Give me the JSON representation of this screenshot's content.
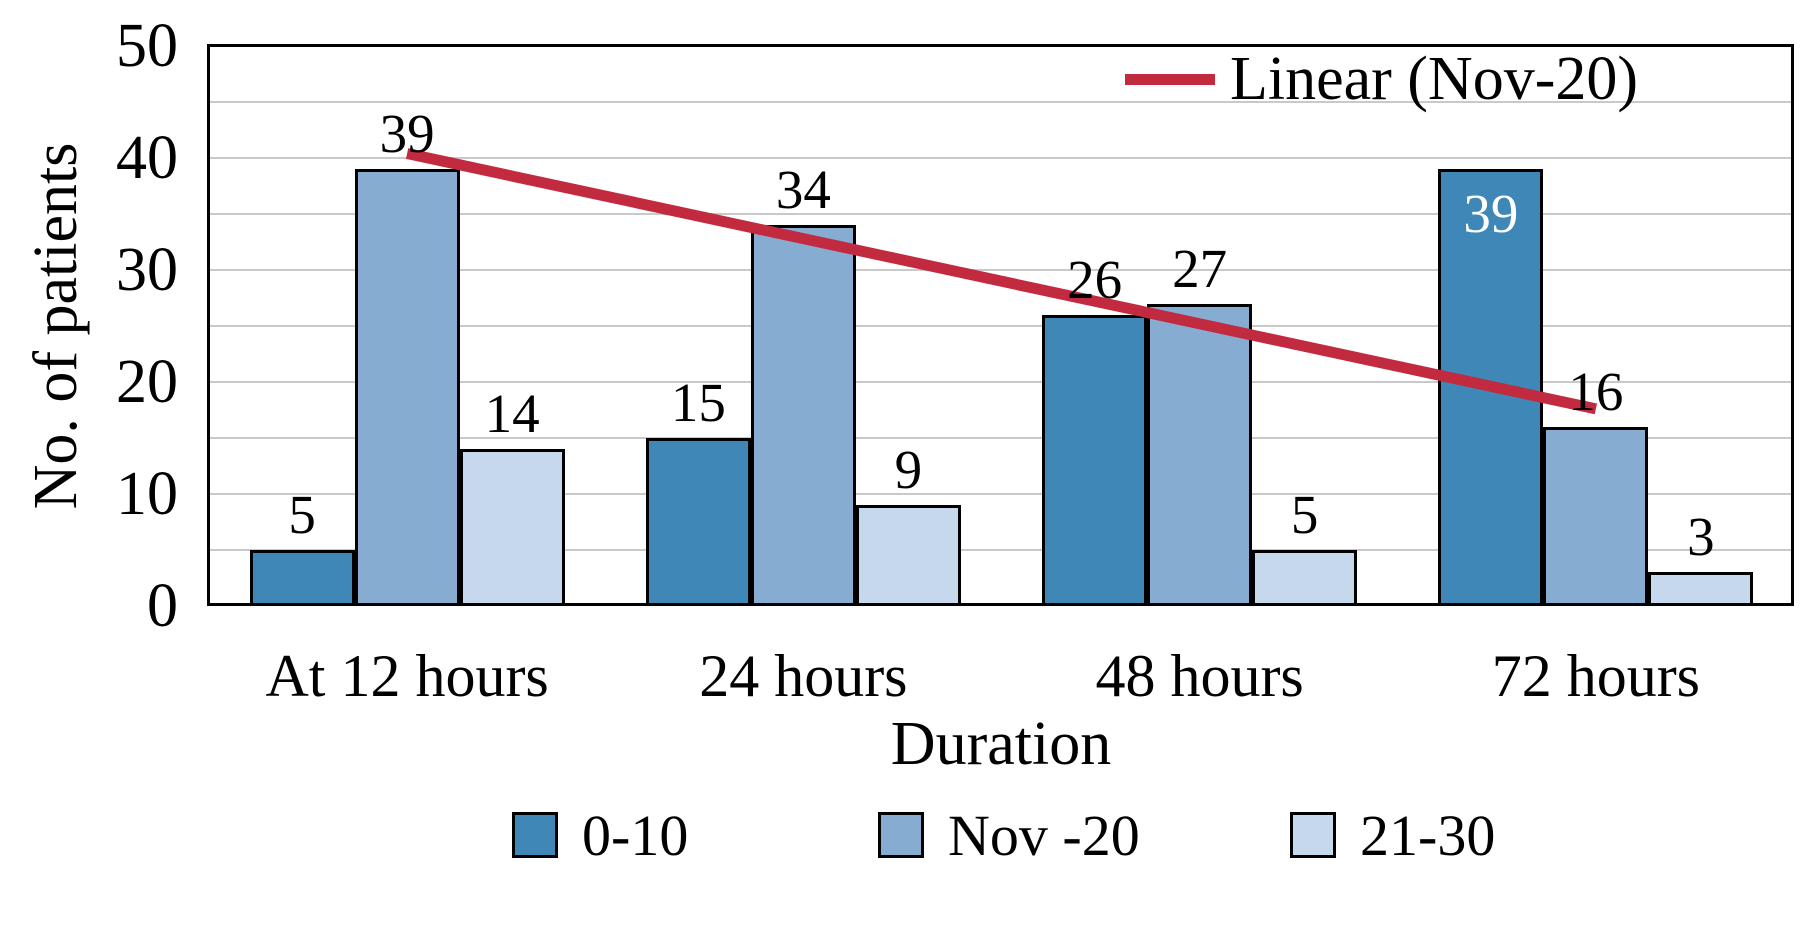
{
  "chart_data": {
    "type": "bar",
    "title": "",
    "ylabel": "No. of patients",
    "xlabel": "Duration",
    "categories": [
      "At 12 hours",
      "24 hours",
      "48 hours",
      "72 hours"
    ],
    "series": [
      {
        "name": "0-10",
        "color": "#3E87B6",
        "values": [
          5,
          15,
          26,
          39
        ]
      },
      {
        "name": "Nov -20",
        "color": "#87ACD1",
        "values": [
          39,
          34,
          27,
          16
        ]
      },
      {
        "name": "21-30",
        "color": "#C6D9EC",
        "values": [
          14,
          9,
          5,
          3
        ]
      }
    ],
    "trendline": {
      "label": "Linear (Nov-20)",
      "on_series": "Nov -20",
      "color": "#C22B3F",
      "start_value": 40.4,
      "end_value": 17.6
    },
    "ylim": [
      0,
      50
    ],
    "ytick_step": 10,
    "grid_step": 5,
    "grid": true,
    "gridline_color": "#C9C9C9",
    "axis_color": "#000000",
    "legend_position": "bottom",
    "inside_label": {
      "category_index": 3,
      "series_index": 0,
      "color": "#FFFFFF"
    }
  }
}
